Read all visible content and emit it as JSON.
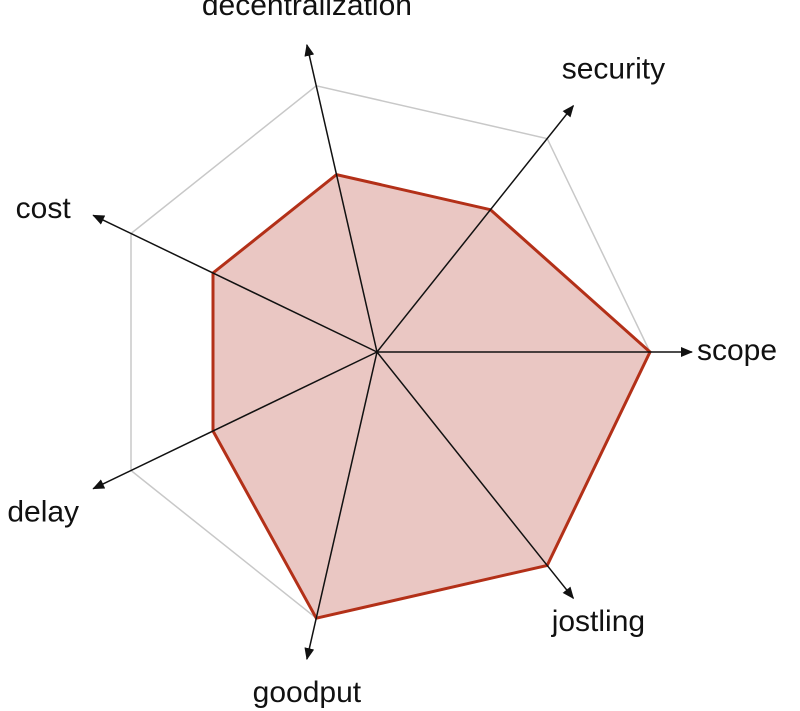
{
  "chart_data": {
    "type": "radar",
    "axes": [
      "scope",
      "security",
      "decentralization",
      "cost",
      "delay",
      "goodput",
      "jostling"
    ],
    "max": 3,
    "rings": [
      1,
      2,
      3
    ],
    "series": [
      {
        "values": [
          3,
          2,
          2,
          2,
          2,
          3,
          3
        ]
      }
    ],
    "grid": true,
    "legend": "none"
  },
  "colors": {
    "fill": "#eac7c3",
    "stroke": "#b33018",
    "grid": "#c8c8c8",
    "axis": "#111111"
  }
}
